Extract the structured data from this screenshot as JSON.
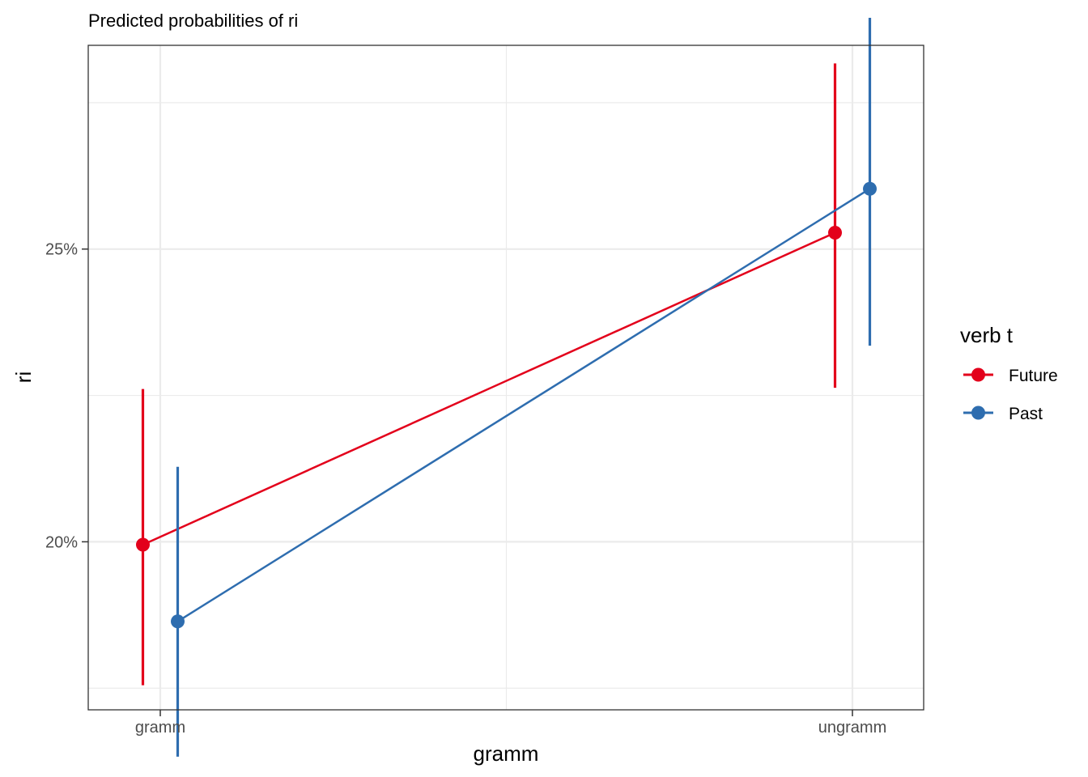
{
  "chart_data": {
    "type": "line",
    "title": "Predicted probabilities of ri",
    "xlabel": "gramm",
    "ylabel": "ri",
    "categories": [
      "gramm",
      "ungramm"
    ],
    "y_ticks": [
      0.2,
      0.25
    ],
    "y_tick_labels": [
      "20%",
      "25%"
    ],
    "ylim": [
      0.1713,
      0.2848
    ],
    "grid": true,
    "legend": {
      "title": "verb t",
      "position": "right"
    },
    "series": [
      {
        "name": "Future",
        "color": "#E3001B",
        "values": [
          0.1995,
          0.2528
        ],
        "lower": [
          0.1755,
          0.2263
        ],
        "upper": [
          0.2261,
          0.2817
        ]
      },
      {
        "name": "Past",
        "color": "#2E6DAF",
        "values": [
          0.1864,
          0.2603
        ],
        "lower": [
          0.1633,
          0.2335
        ],
        "upper": [
          0.2128,
          0.2895
        ]
      }
    ]
  }
}
